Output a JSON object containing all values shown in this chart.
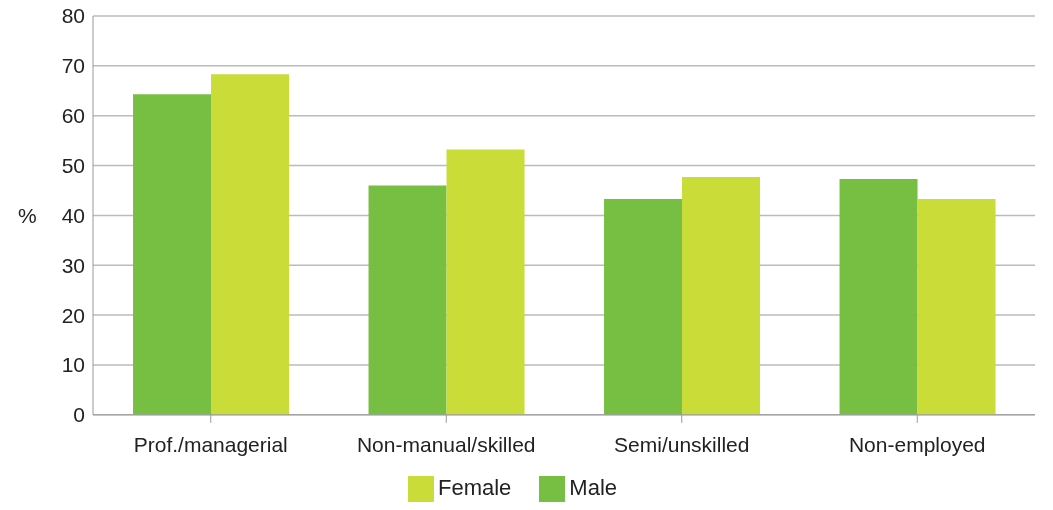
{
  "chart_data": {
    "type": "bar",
    "ylabel": "%",
    "categories": [
      "Prof./managerial",
      "Non-manual/skilled",
      "Semi/unskilled",
      "Non-employed"
    ],
    "series": [
      {
        "name": "Male",
        "color": "#77bf43",
        "values": [
          64.3,
          46,
          43.3,
          47.3
        ]
      },
      {
        "name": "Female",
        "color": "#c9dc38",
        "values": [
          68.3,
          53.2,
          47.7,
          43.3
        ]
      }
    ],
    "ylim": [
      0,
      80
    ],
    "yticks": [
      0,
      10,
      20,
      30,
      40,
      50,
      60,
      70,
      80
    ],
    "grid": "y",
    "legend": "bottom"
  }
}
